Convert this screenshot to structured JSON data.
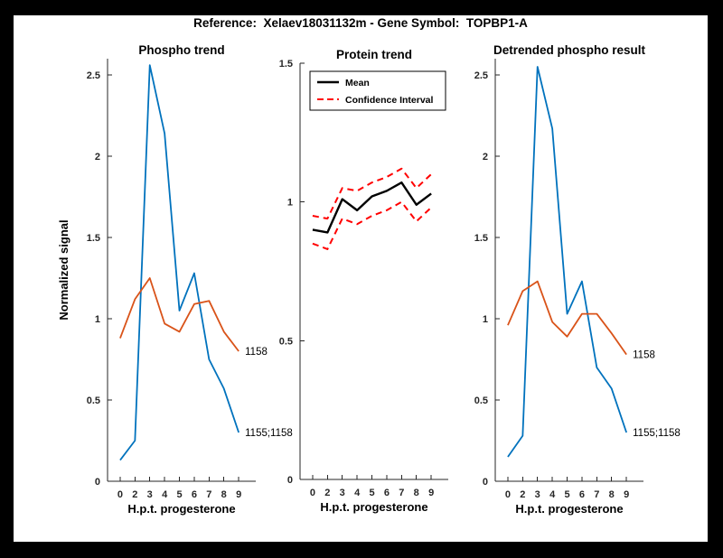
{
  "figure": {
    "title": "Reference:  Xelaev18031132m - Gene Symbol:  TOPBP1-A",
    "background_color": "#000000",
    "canvas_color": "#ffffff"
  },
  "colors": {
    "series_blue": "#0072BD",
    "series_orange": "#D95319",
    "ci_red": "#FF0000",
    "mean_black": "#000000",
    "axis_gray": "#262626"
  },
  "chart_data": [
    {
      "type": "line",
      "title": "Phospho trend",
      "xlabel": "H.p.t. progesterone",
      "ylabel": "Normalized signal",
      "xticklabels": [
        "0",
        "2",
        "3",
        "4",
        "5",
        "6",
        "7",
        "8",
        "9"
      ],
      "ylim": [
        0,
        2.6
      ],
      "yticks": [
        0,
        0.5,
        1,
        1.5,
        2,
        2.5
      ],
      "ytick_labels": [
        "0",
        "0.5",
        "1",
        "1.5",
        "2",
        "2.5"
      ],
      "grid": false,
      "series": [
        {
          "name": "1155;1158",
          "color": "#0072BD",
          "width": 1.8,
          "values": [
            0.13,
            0.25,
            2.56,
            2.14,
            1.05,
            1.28,
            0.75,
            0.57,
            0.3
          ],
          "end_label": "1155;1158"
        },
        {
          "name": "1158",
          "color": "#D95319",
          "width": 1.8,
          "values": [
            0.88,
            1.12,
            1.25,
            0.97,
            0.92,
            1.09,
            1.11,
            0.92,
            0.8
          ],
          "end_label": "1158"
        }
      ]
    },
    {
      "type": "line",
      "title": "Protein trend",
      "xlabel": "H.p.t. progesterone",
      "ylabel": "",
      "xticklabels": [
        "0",
        "2",
        "3",
        "4",
        "5",
        "6",
        "7",
        "8",
        "9"
      ],
      "ylim": [
        0,
        1.5
      ],
      "yticks": [
        0,
        0.5,
        1,
        1.5
      ],
      "ytick_labels": [
        "0",
        "0.5",
        "1",
        "1.5"
      ],
      "grid": false,
      "legend": {
        "position": "top-left",
        "items": [
          {
            "label": "Mean",
            "color": "#000000",
            "dash": false
          },
          {
            "label": "Confidence Interval",
            "color": "#FF0000",
            "dash": true
          }
        ]
      },
      "series": [
        {
          "name": "Mean",
          "color": "#000000",
          "width": 2.4,
          "values": [
            0.9,
            0.89,
            1.01,
            0.97,
            1.02,
            1.04,
            1.07,
            0.99,
            1.03
          ]
        },
        {
          "name": "Confidence Interval upper",
          "color": "#FF0000",
          "width": 2,
          "dash": "7,5",
          "values": [
            0.95,
            0.94,
            1.05,
            1.04,
            1.07,
            1.09,
            1.12,
            1.05,
            1.1
          ]
        },
        {
          "name": "Confidence Interval lower",
          "color": "#FF0000",
          "width": 2,
          "dash": "7,5",
          "values": [
            0.85,
            0.83,
            0.94,
            0.92,
            0.95,
            0.97,
            1.0,
            0.93,
            0.98
          ]
        }
      ]
    },
    {
      "type": "line",
      "title": "Detrended phospho result",
      "xlabel": "H.p.t. progesterone",
      "ylabel": "",
      "xticklabels": [
        "0",
        "2",
        "3",
        "4",
        "5",
        "6",
        "7",
        "8",
        "9"
      ],
      "ylim": [
        0,
        2.6
      ],
      "yticks": [
        0,
        0.5,
        1,
        1.5,
        2,
        2.5
      ],
      "ytick_labels": [
        "0",
        "0.5",
        "1",
        "1.5",
        "2",
        "2.5"
      ],
      "grid": false,
      "series": [
        {
          "name": "1155;1158",
          "color": "#0072BD",
          "width": 1.8,
          "values": [
            0.15,
            0.28,
            2.55,
            2.17,
            1.03,
            1.23,
            0.7,
            0.57,
            0.3
          ],
          "end_label": "1155;1158"
        },
        {
          "name": "1158",
          "color": "#D95319",
          "width": 1.8,
          "values": [
            0.96,
            1.17,
            1.23,
            0.98,
            0.89,
            1.03,
            1.03,
            0.91,
            0.78
          ],
          "end_label": "1158"
        }
      ]
    }
  ]
}
